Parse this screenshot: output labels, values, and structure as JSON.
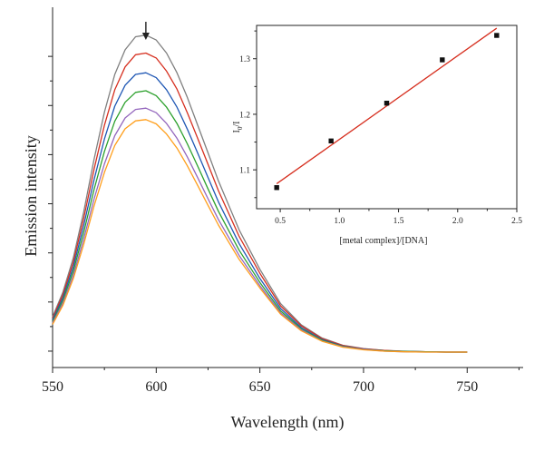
{
  "chart_data": [
    {
      "type": "line",
      "xlabel": "Wavelength (nm)",
      "ylabel": "Emission intensity",
      "xlim": [
        550,
        777
      ],
      "ylim": [
        0,
        1.1
      ],
      "xticks": [
        550,
        600,
        650,
        700,
        750
      ],
      "xtick_labels": [
        "550",
        "600",
        "650",
        "700",
        "750"
      ],
      "yticks": [
        0.05,
        0.2,
        0.35,
        0.5,
        0.65,
        0.8,
        0.95
      ],
      "ytick_labels_visible": false,
      "peak_arrow_x": 595,
      "x": [
        550,
        555,
        560,
        565,
        570,
        575,
        580,
        585,
        590,
        595,
        600,
        605,
        610,
        615,
        620,
        625,
        630,
        640,
        650,
        660,
        670,
        680,
        690,
        700,
        710,
        720,
        730,
        740,
        750
      ],
      "series": [
        {
          "color": "#7f7f7f",
          "values": [
            0.155,
            0.23,
            0.335,
            0.475,
            0.635,
            0.78,
            0.895,
            0.97,
            1.01,
            1.015,
            1.0,
            0.96,
            0.9,
            0.825,
            0.74,
            0.655,
            0.57,
            0.42,
            0.3,
            0.195,
            0.13,
            0.09,
            0.068,
            0.058,
            0.052,
            0.05,
            0.048,
            0.047,
            0.047
          ]
        },
        {
          "color": "#d62f1f",
          "values": [
            0.15,
            0.222,
            0.322,
            0.455,
            0.605,
            0.74,
            0.848,
            0.918,
            0.955,
            0.96,
            0.945,
            0.905,
            0.85,
            0.778,
            0.7,
            0.62,
            0.54,
            0.4,
            0.288,
            0.188,
            0.127,
            0.088,
            0.067,
            0.057,
            0.052,
            0.049,
            0.048,
            0.047,
            0.047
          ]
        },
        {
          "color": "#1f57b4",
          "values": [
            0.145,
            0.213,
            0.308,
            0.433,
            0.573,
            0.698,
            0.798,
            0.862,
            0.895,
            0.9,
            0.885,
            0.848,
            0.795,
            0.728,
            0.655,
            0.58,
            0.506,
            0.378,
            0.272,
            0.18,
            0.122,
            0.085,
            0.065,
            0.056,
            0.051,
            0.049,
            0.048,
            0.047,
            0.047
          ]
        },
        {
          "color": "#2ca02c",
          "values": [
            0.14,
            0.205,
            0.295,
            0.412,
            0.543,
            0.66,
            0.752,
            0.81,
            0.84,
            0.845,
            0.83,
            0.795,
            0.745,
            0.683,
            0.615,
            0.545,
            0.477,
            0.358,
            0.26,
            0.173,
            0.118,
            0.083,
            0.064,
            0.055,
            0.051,
            0.049,
            0.048,
            0.047,
            0.047
          ]
        },
        {
          "color": "#9467bd",
          "values": [
            0.136,
            0.197,
            0.282,
            0.392,
            0.514,
            0.622,
            0.708,
            0.762,
            0.788,
            0.792,
            0.778,
            0.745,
            0.7,
            0.643,
            0.58,
            0.515,
            0.452,
            0.342,
            0.25,
            0.167,
            0.115,
            0.081,
            0.063,
            0.055,
            0.05,
            0.048,
            0.047,
            0.047,
            0.047
          ]
        },
        {
          "color": "#ff9e1a",
          "values": [
            0.132,
            0.19,
            0.272,
            0.376,
            0.493,
            0.596,
            0.678,
            0.729,
            0.753,
            0.757,
            0.744,
            0.713,
            0.67,
            0.616,
            0.556,
            0.495,
            0.435,
            0.33,
            0.243,
            0.163,
            0.112,
            0.08,
            0.062,
            0.054,
            0.05,
            0.048,
            0.047,
            0.047,
            0.047
          ]
        }
      ]
    },
    {
      "type": "scatter",
      "xlabel": "[metal complex]/[DNA]",
      "ylabel_main": "I",
      "ylabel_sub": "0",
      "ylabel_tail": "/I",
      "xlim": [
        0.3,
        2.5
      ],
      "ylim": [
        1.03,
        1.36
      ],
      "xticks": [
        0.5,
        1.0,
        1.5,
        2.0,
        2.5
      ],
      "xtick_labels": [
        "0.5",
        "1.0",
        "1.5",
        "2.0",
        "2.5"
      ],
      "yticks": [
        1.1,
        1.2,
        1.3
      ],
      "ytick_labels": [
        "1.1",
        "1.2",
        "1.3"
      ],
      "points": {
        "x": [
          0.47,
          0.93,
          1.4,
          1.87,
          2.33
        ],
        "y": [
          1.068,
          1.152,
          1.22,
          1.298,
          1.342
        ]
      },
      "fit_line": {
        "color": "#d62f1f",
        "x": [
          0.47,
          2.33
        ],
        "y": [
          1.075,
          1.355
        ]
      }
    }
  ]
}
